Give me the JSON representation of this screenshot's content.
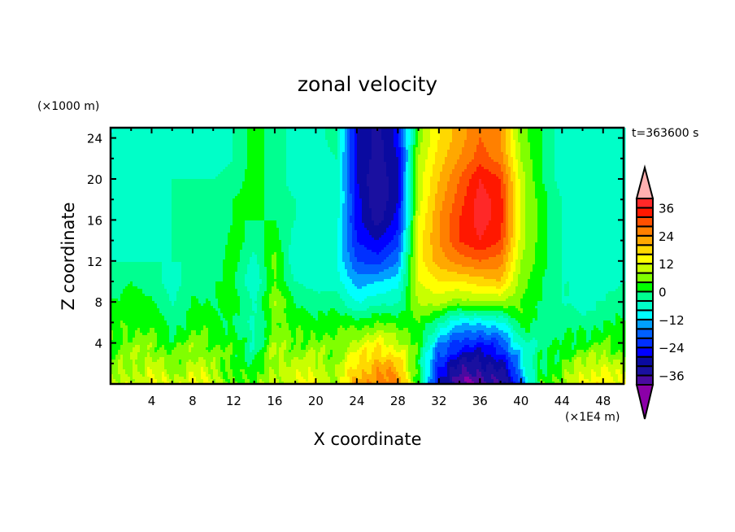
{
  "chart_data": {
    "type": "heatmap",
    "title": "zonal velocity",
    "xlabel": "X coordinate",
    "ylabel": "Z coordinate",
    "x_unit": "(×1E4 m)",
    "y_unit": "(×1000 m)",
    "annotation": "t=363600 s",
    "xlim": [
      0,
      50
    ],
    "ylim": [
      0,
      25
    ],
    "x_ticks": [
      4,
      8,
      12,
      16,
      20,
      24,
      28,
      32,
      36,
      40,
      44,
      48
    ],
    "y_ticks": [
      4,
      8,
      12,
      16,
      20,
      24
    ],
    "grid": false,
    "colorbar": {
      "placement": "right",
      "extend": "both",
      "tick_labels": [
        "36",
        "24",
        "12",
        "0",
        "-12",
        "-24",
        "-36"
      ],
      "tick_values": [
        36,
        24,
        12,
        0,
        -12,
        -24,
        -36
      ],
      "levels": [
        -40,
        -36,
        -32,
        -28,
        -24,
        -20,
        -16,
        -12,
        -8,
        -4,
        0,
        4,
        8,
        12,
        16,
        20,
        24,
        28,
        32,
        36,
        40
      ],
      "colors": [
        "#8b00a8",
        "#4a0aa0",
        "#1a10a0",
        "#0a0aa0",
        "#0000ff",
        "#0030ff",
        "#0060ff",
        "#00a0ff",
        "#00ffff",
        "#00ffc8",
        "#00ff90",
        "#00ff00",
        "#80ff00",
        "#c8ff00",
        "#ffff00",
        "#ffd800",
        "#ffa800",
        "#ff8000",
        "#ff5000",
        "#ff1800",
        "#ff2828",
        "#ffb0b0"
      ],
      "under_color": "#8b00a8",
      "over_color": "#ffb0b0"
    },
    "x": [
      0,
      2,
      4,
      6,
      8,
      10,
      12,
      14,
      16,
      18,
      20,
      22,
      24,
      26,
      28,
      30,
      32,
      34,
      36,
      38,
      40,
      42,
      44,
      46,
      48,
      50
    ],
    "z": [
      0,
      2,
      4,
      6,
      8,
      10,
      12,
      14,
      16,
      18,
      20,
      22,
      24,
      25
    ],
    "values": [
      [
        6,
        10,
        14,
        8,
        16,
        8,
        6,
        2,
        12,
        10,
        14,
        8,
        22,
        28,
        24,
        4,
        -30,
        -38,
        -40,
        -36,
        -18,
        2,
        8,
        12,
        18,
        10
      ],
      [
        4,
        8,
        10,
        4,
        10,
        6,
        4,
        -2,
        10,
        8,
        10,
        6,
        16,
        22,
        18,
        2,
        -24,
        -32,
        -34,
        -30,
        -12,
        0,
        4,
        8,
        12,
        6
      ],
      [
        2,
        6,
        6,
        2,
        6,
        4,
        2,
        -4,
        8,
        4,
        6,
        4,
        10,
        14,
        10,
        2,
        -14,
        -22,
        -24,
        -20,
        -6,
        -2,
        0,
        2,
        4,
        2
      ],
      [
        2,
        4,
        2,
        -2,
        2,
        2,
        0,
        -6,
        6,
        2,
        2,
        2,
        2,
        4,
        2,
        4,
        -4,
        -10,
        -12,
        -8,
        2,
        -2,
        -2,
        -2,
        0,
        0
      ],
      [
        0,
        2,
        0,
        -4,
        0,
        0,
        2,
        -4,
        8,
        0,
        -2,
        -2,
        -8,
        -6,
        -4,
        8,
        10,
        6,
        8,
        8,
        4,
        0,
        -4,
        -6,
        -4,
        -2
      ],
      [
        -2,
        0,
        -2,
        -6,
        -2,
        0,
        0,
        -8,
        4,
        -4,
        -6,
        -6,
        -14,
        -12,
        -10,
        12,
        16,
        16,
        18,
        20,
        6,
        0,
        -4,
        -4,
        -6,
        -4
      ],
      [
        -4,
        -4,
        -4,
        -4,
        -4,
        -2,
        2,
        -6,
        6,
        -8,
        -6,
        -8,
        -20,
        -22,
        -16,
        14,
        22,
        26,
        28,
        26,
        8,
        2,
        -4,
        -6,
        -6,
        -6
      ],
      [
        -6,
        -6,
        -6,
        -4,
        -4,
        -4,
        2,
        -2,
        2,
        -6,
        -8,
        -8,
        -24,
        -28,
        -22,
        14,
        24,
        32,
        36,
        32,
        10,
        2,
        -4,
        -6,
        -6,
        -6
      ],
      [
        -6,
        -6,
        -6,
        -4,
        -4,
        -4,
        0,
        0,
        0,
        -4,
        -6,
        -6,
        -26,
        -34,
        -26,
        12,
        24,
        32,
        38,
        34,
        10,
        2,
        -4,
        -8,
        -8,
        -8
      ],
      [
        -8,
        -8,
        -6,
        -4,
        -4,
        -4,
        0,
        2,
        -2,
        -4,
        -6,
        -4,
        -26,
        -36,
        -28,
        10,
        22,
        30,
        38,
        34,
        10,
        2,
        -4,
        -8,
        -8,
        -8
      ],
      [
        -8,
        -8,
        -6,
        -4,
        -4,
        -4,
        -2,
        2,
        -2,
        -6,
        -6,
        -4,
        -28,
        -36,
        -28,
        10,
        20,
        28,
        36,
        32,
        10,
        0,
        -6,
        -8,
        -8,
        -8
      ],
      [
        -8,
        -8,
        -6,
        -6,
        -6,
        -6,
        -4,
        2,
        -2,
        -6,
        -6,
        -4,
        -28,
        -34,
        -28,
        8,
        18,
        24,
        30,
        26,
        8,
        0,
        -6,
        -8,
        -8,
        -8
      ],
      [
        -8,
        -8,
        -8,
        -6,
        -6,
        -6,
        -4,
        2,
        -2,
        -6,
        -6,
        -2,
        -28,
        -34,
        -26,
        6,
        16,
        22,
        28,
        24,
        6,
        0,
        -6,
        -8,
        -8,
        -8
      ],
      [
        -8,
        -8,
        -8,
        -6,
        -6,
        -6,
        -4,
        2,
        -2,
        -6,
        -6,
        -2,
        -28,
        -34,
        -26,
        6,
        16,
        22,
        28,
        24,
        6,
        0,
        -6,
        -8,
        -8,
        -8
      ]
    ]
  }
}
